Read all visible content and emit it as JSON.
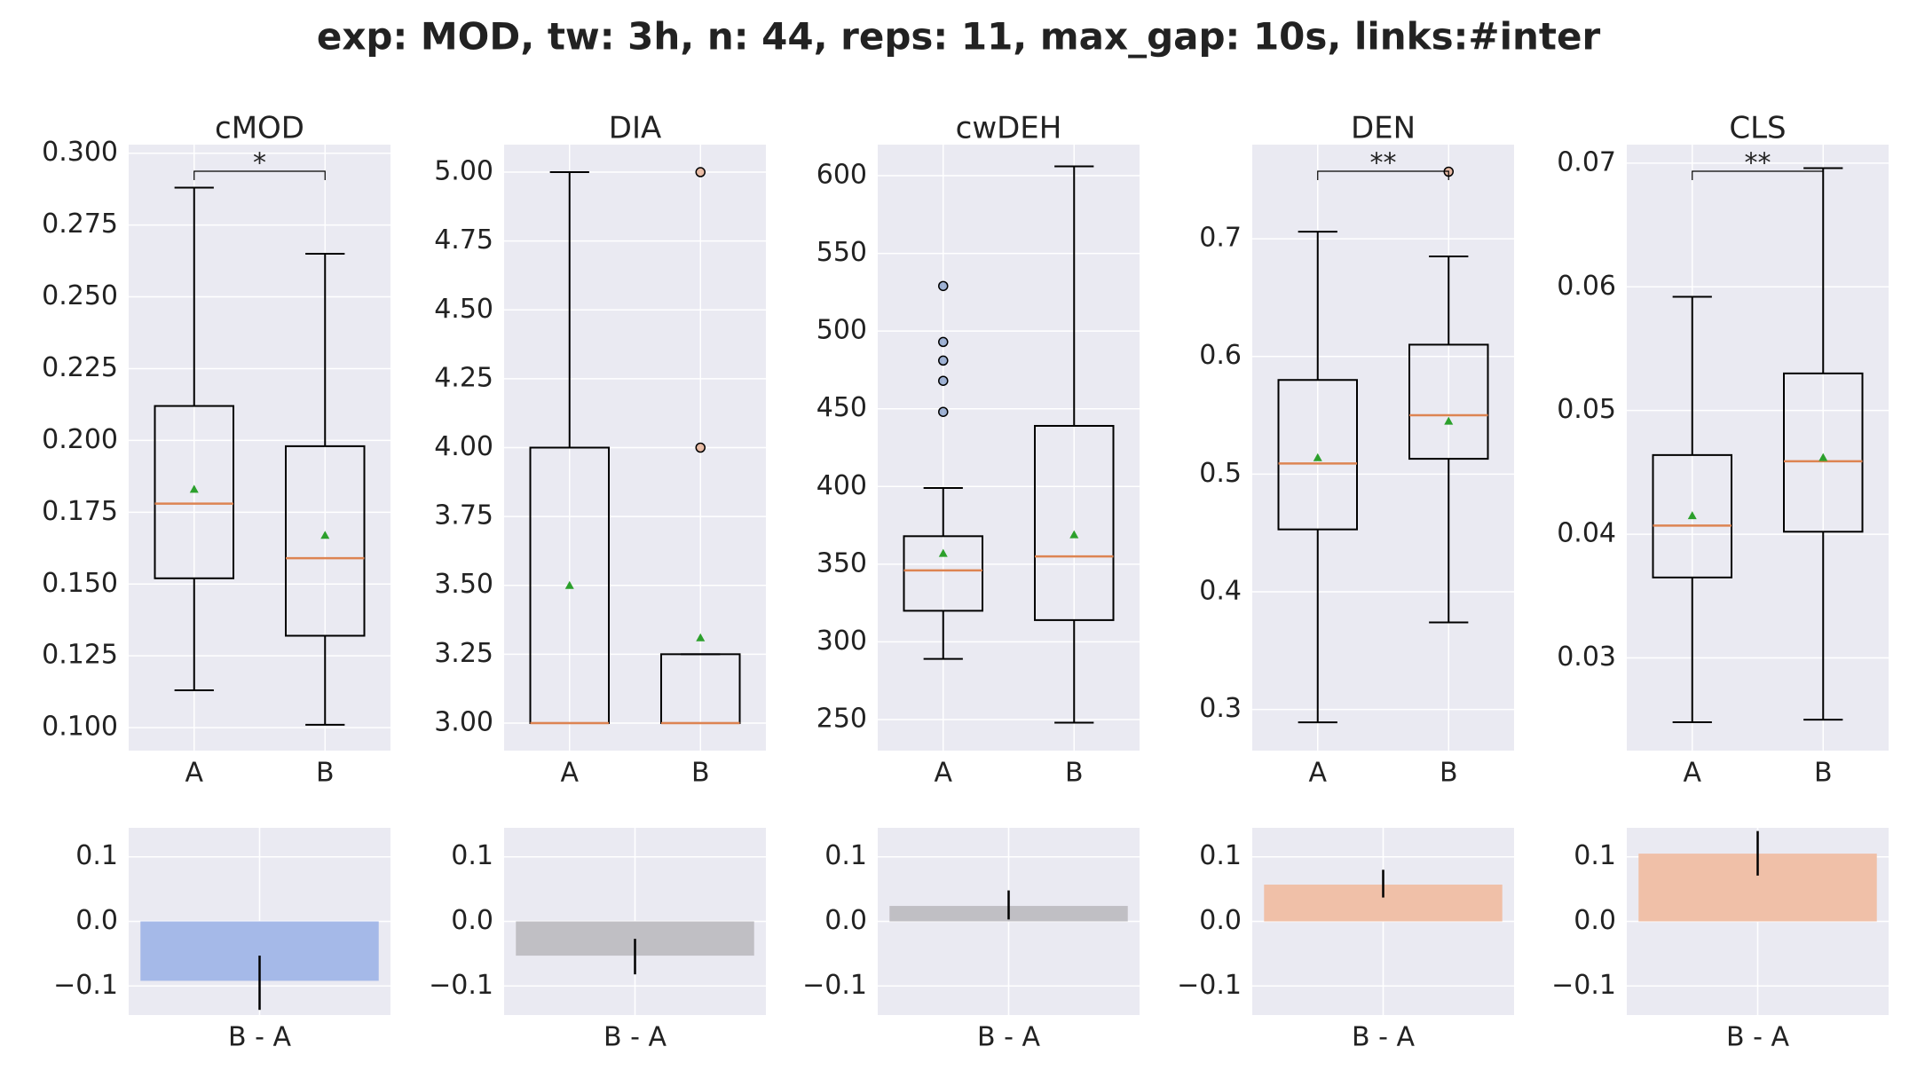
{
  "title": "exp: MOD, tw: 3h, n: 44, reps: 11, max_gap: 10s, links:#inter",
  "chart_data": [
    {
      "type": "box",
      "title": "cMOD",
      "categories": [
        "A",
        "B"
      ],
      "significance": "*",
      "boxes": [
        {
          "whislo": 0.113,
          "q1": 0.152,
          "med": 0.178,
          "q3": 0.212,
          "whishi": 0.288,
          "mean": 0.183,
          "outliers": []
        },
        {
          "whislo": 0.101,
          "q1": 0.132,
          "med": 0.159,
          "q3": 0.198,
          "whishi": 0.265,
          "mean": 0.167,
          "outliers": []
        }
      ],
      "colors": [
        "#4c72b0",
        "#dd8452"
      ],
      "ylim": [
        0.092,
        0.303
      ],
      "yticks": [
        {
          "value": 0.1,
          "label": "0.100"
        },
        {
          "value": 0.125,
          "label": "0.125"
        },
        {
          "value": 0.15,
          "label": "0.150"
        },
        {
          "value": 0.175,
          "label": "0.175"
        },
        {
          "value": 0.2,
          "label": "0.200"
        },
        {
          "value": 0.225,
          "label": "0.225"
        },
        {
          "value": 0.25,
          "label": "0.250"
        },
        {
          "value": 0.275,
          "label": "0.275"
        },
        {
          "value": 0.3,
          "label": "0.300"
        }
      ]
    },
    {
      "type": "box",
      "title": "DIA",
      "categories": [
        "A",
        "B"
      ],
      "boxes": [
        {
          "whislo": 3,
          "q1": 3,
          "med": 3,
          "q3": 4,
          "whishi": 5,
          "mean": 3.5,
          "outliers": []
        },
        {
          "whislo": 3,
          "q1": 3,
          "med": 3,
          "q3": 3.25,
          "whishi": 3.25,
          "mean": 3.31,
          "outliers": [
            4,
            5
          ]
        }
      ],
      "colors": [
        "#4c72b0",
        "#dd8452"
      ],
      "ylim": [
        2.9,
        5.1
      ],
      "yticks": [
        {
          "value": 3,
          "label": "3.00"
        },
        {
          "value": 3.25,
          "label": "3.25"
        },
        {
          "value": 3.5,
          "label": "3.50"
        },
        {
          "value": 3.75,
          "label": "3.75"
        },
        {
          "value": 4,
          "label": "4.00"
        },
        {
          "value": 4.25,
          "label": "4.25"
        },
        {
          "value": 4.5,
          "label": "4.50"
        },
        {
          "value": 4.75,
          "label": "4.75"
        },
        {
          "value": 5,
          "label": "5.00"
        }
      ]
    },
    {
      "type": "box",
      "title": "cwDEH",
      "categories": [
        "A",
        "B"
      ],
      "boxes": [
        {
          "whislo": 289,
          "q1": 320,
          "med": 346,
          "q3": 368,
          "whishi": 399,
          "mean": 357,
          "outliers": [
            448,
            468,
            481,
            493,
            529
          ]
        },
        {
          "whislo": 248,
          "q1": 314,
          "med": 355,
          "q3": 439,
          "whishi": 606,
          "mean": 369,
          "outliers": []
        }
      ],
      "colors": [
        "#4c72b0",
        "#dd8452"
      ],
      "ylim": [
        230,
        620
      ],
      "yticks": [
        250,
        300,
        350,
        400,
        450,
        500,
        550,
        600
      ]
    },
    {
      "type": "box",
      "title": "DEN",
      "categories": [
        "A",
        "B"
      ],
      "significance": "**",
      "boxes": [
        {
          "whislo": 0.289,
          "q1": 0.453,
          "med": 0.509,
          "q3": 0.58,
          "whishi": 0.706,
          "mean": 0.514,
          "outliers": []
        },
        {
          "whislo": 0.374,
          "q1": 0.513,
          "med": 0.55,
          "q3": 0.61,
          "whishi": 0.685,
          "mean": 0.545,
          "outliers": [
            0.757
          ]
        }
      ],
      "colors": [
        "#4c72b0",
        "#dd8452"
      ],
      "ylim": [
        0.265,
        0.78
      ],
      "yticks": [
        0.3,
        0.4,
        0.5,
        0.6,
        0.7
      ]
    },
    {
      "type": "box",
      "title": "CLS",
      "categories": [
        "A",
        "B"
      ],
      "significance": "**",
      "boxes": [
        {
          "whislo": 0.0248,
          "q1": 0.0365,
          "med": 0.0407,
          "q3": 0.0464,
          "whishi": 0.0592,
          "mean": 0.0415,
          "outliers": []
        },
        {
          "whislo": 0.025,
          "q1": 0.0402,
          "med": 0.0459,
          "q3": 0.053,
          "whishi": 0.0696,
          "mean": 0.0462,
          "outliers": []
        }
      ],
      "colors": [
        "#4c72b0",
        "#dd8452"
      ],
      "ylim": [
        0.0225,
        0.0715
      ],
      "yticks": [
        0.03,
        0.04,
        0.05,
        0.06,
        0.07
      ]
    },
    {
      "type": "bar",
      "categories": [
        "B - A"
      ],
      "values": [
        -0.092
      ],
      "ci": [
        [
          -0.137,
          -0.053
        ]
      ],
      "color": "#a5b9e8",
      "ylim": [
        -0.145,
        0.145
      ],
      "yticks": [
        {
          "value": -0.1,
          "label": "−0.1"
        },
        {
          "value": 0,
          "label": "0.0"
        },
        0.1
      ]
    },
    {
      "type": "bar",
      "categories": [
        "B - A"
      ],
      "values": [
        -0.053
      ],
      "ci": [
        [
          -0.082,
          -0.027
        ]
      ],
      "color": "#c0bfc4",
      "ylim": [
        -0.145,
        0.145
      ],
      "yticks": [
        {
          "value": -0.1,
          "label": "−0.1"
        },
        {
          "value": 0,
          "label": "0.0"
        },
        0.1
      ]
    },
    {
      "type": "bar",
      "categories": [
        "B - A"
      ],
      "values": [
        0.024
      ],
      "ci": [
        [
          0.003,
          0.048
        ]
      ],
      "color": "#c0bfc4",
      "ylim": [
        -0.145,
        0.145
      ],
      "yticks": [
        {
          "value": -0.1,
          "label": "−0.1"
        },
        {
          "value": 0,
          "label": "0.0"
        },
        0.1
      ]
    },
    {
      "type": "bar",
      "categories": [
        "B - A"
      ],
      "values": [
        0.057
      ],
      "ci": [
        [
          0.037,
          0.08
        ]
      ],
      "color": "#f0c0a8",
      "ylim": [
        -0.145,
        0.145
      ],
      "yticks": [
        {
          "value": -0.1,
          "label": "−0.1"
        },
        {
          "value": 0,
          "label": "0.0"
        },
        0.1
      ]
    },
    {
      "type": "bar",
      "categories": [
        "B - A"
      ],
      "values": [
        0.105
      ],
      "ci": [
        [
          0.071,
          0.14
        ]
      ],
      "color": "#f0c0a8",
      "ylim": [
        -0.145,
        0.145
      ],
      "yticks": [
        {
          "value": -0.1,
          "label": "−0.1"
        },
        {
          "value": 0,
          "label": "0.0"
        },
        0.1
      ]
    }
  ]
}
